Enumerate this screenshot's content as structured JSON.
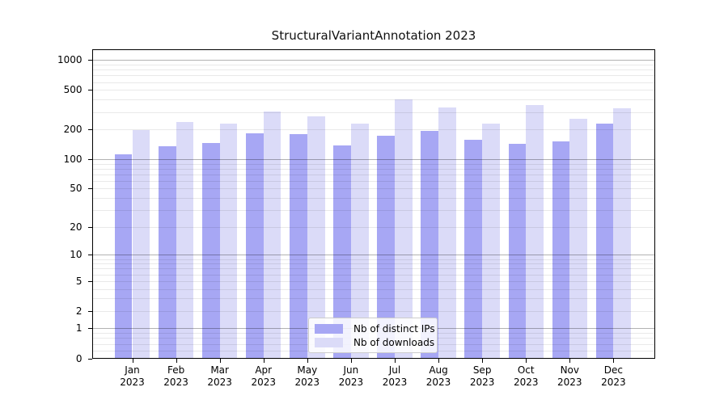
{
  "chart_data": {
    "type": "bar",
    "title": "StructuralVariantAnnotation 2023",
    "scale": "log1p",
    "categories": [
      "Jan",
      "Feb",
      "Mar",
      "Apr",
      "May",
      "Jun",
      "Jul",
      "Aug",
      "Sep",
      "Oct",
      "Nov",
      "Dec"
    ],
    "x_year_label": "2023",
    "series": [
      {
        "name": "Nb of distinct IPs",
        "color": "#a7a7f4",
        "values": [
          112,
          136,
          146,
          184,
          178,
          137,
          172,
          193,
          157,
          142,
          151,
          227
        ]
      },
      {
        "name": "Nb of downloads",
        "color": "#dbdbf8",
        "values": [
          196,
          240,
          230,
          305,
          269,
          228,
          403,
          334,
          230,
          351,
          257,
          325
        ]
      }
    ],
    "yticks": [
      0,
      1,
      2,
      5,
      10,
      20,
      50,
      100,
      200,
      500,
      1000
    ],
    "ylim": [
      0,
      1250
    ],
    "xlabel": "",
    "ylabel": "",
    "grid": true,
    "legend_position": "lower-center-inside"
  },
  "colors": {
    "background": "#ffffff",
    "spine": "#000000",
    "grid_major": "#adadad",
    "grid_minor": "#e9e9e9",
    "bar_distinct_ips": "#a7a7f4",
    "bar_downloads": "#dbdbf8"
  }
}
